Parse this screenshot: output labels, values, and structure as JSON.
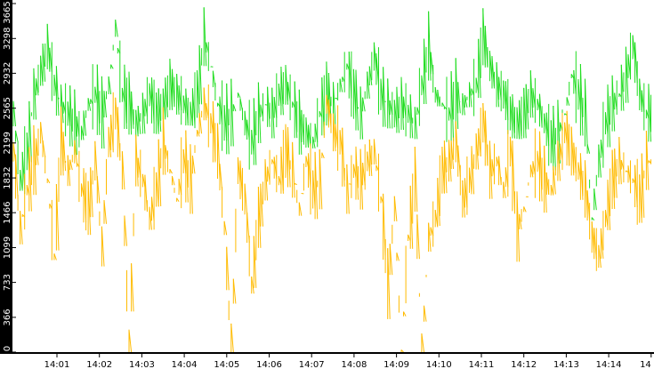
{
  "chart_data": {
    "type": "line",
    "title": "",
    "xlabel": "",
    "ylabel": "",
    "y_ticks": [
      "0",
      "366",
      "733",
      "1099",
      "1466",
      "1832",
      "2199",
      "2565",
      "2932",
      "3298",
      "3665"
    ],
    "y_tick_values": [
      0,
      366,
      733,
      1099,
      1466,
      1832,
      2199,
      2565,
      2932,
      3298,
      3665
    ],
    "ylim": [
      0,
      3665
    ],
    "x_ticks": [
      "14:01",
      "14:02",
      "14:03",
      "14:04",
      "14:05",
      "14:06",
      "14:07",
      "14:08",
      "14:09",
      "14:10",
      "14:11",
      "14:12",
      "14:13",
      "14:14",
      "14"
    ],
    "xlim": [
      "14:00:40",
      "14:14:55"
    ],
    "grid": false,
    "legend": "none",
    "style": "vertical spike lines, green series drawn behind yellow series",
    "series": [
      {
        "color": "#22dd22",
        "sampling": "approx. every 10 s, estimated (dense high-frequency data)",
        "values": [
          2500,
          1800,
          2100,
          2700,
          2950,
          3200,
          2800,
          2600,
          2500,
          2400,
          2300,
          2600,
          2700,
          2500,
          2800,
          3400,
          2700,
          2600,
          2400,
          2500,
          2700,
          2500,
          2600,
          2800,
          2700,
          2600,
          2500,
          2700,
          3300,
          3000,
          2600,
          2400,
          2500,
          2700,
          2400,
          2200,
          2500,
          2600,
          2500,
          2700,
          2800,
          2600,
          2400,
          2300,
          2200,
          2500,
          2700,
          2600,
          2800,
          3000,
          2700,
          2500,
          2800,
          3100,
          2700,
          2600,
          2500,
          2600,
          2500,
          2400,
          2800,
          3200,
          2700,
          2600,
          2500,
          2700,
          2600,
          2700,
          2800,
          3300,
          3000,
          2800,
          2700,
          2500,
          2400,
          2500,
          2700,
          2600,
          2400,
          2200,
          2300,
          2500,
          2900,
          2700,
          2500,
          1400,
          2000,
          2400,
          2600,
          2700,
          2900,
          3200,
          2700,
          2500
        ]
      },
      {
        "color": "#ffbb00",
        "sampling": "approx. every 10 s, estimated (dense high-frequency data)",
        "values": [
          2100,
          1300,
          1700,
          2000,
          2300,
          1800,
          1000,
          2200,
          1900,
          2100,
          1700,
          1500,
          2000,
          1100,
          2200,
          2500,
          1900,
          0,
          2000,
          1800,
          1400,
          1700,
          2200,
          1900,
          1600,
          2000,
          1800,
          2300,
          2600,
          2400,
          2100,
          1300,
          0,
          1900,
          1600,
          700,
          1400,
          1800,
          2000,
          1800,
          2100,
          1900,
          1500,
          2000,
          1700,
          1800,
          2600,
          2300,
          2200,
          1700,
          1900,
          1800,
          2000,
          2100,
          1600,
          700,
          1500,
          0,
          1200,
          1800,
          0,
          1200,
          1400,
          1900,
          2000,
          2200,
          1600,
          1800,
          2100,
          2400,
          1900,
          2000,
          1700,
          2100,
          1300,
          1500,
          1900,
          2000,
          1800,
          1700,
          2000,
          2300,
          2100,
          1900,
          1700,
          1200,
          1000,
          1400,
          1800,
          2000,
          1900,
          1800,
          1600,
          2000
        ]
      }
    ]
  }
}
